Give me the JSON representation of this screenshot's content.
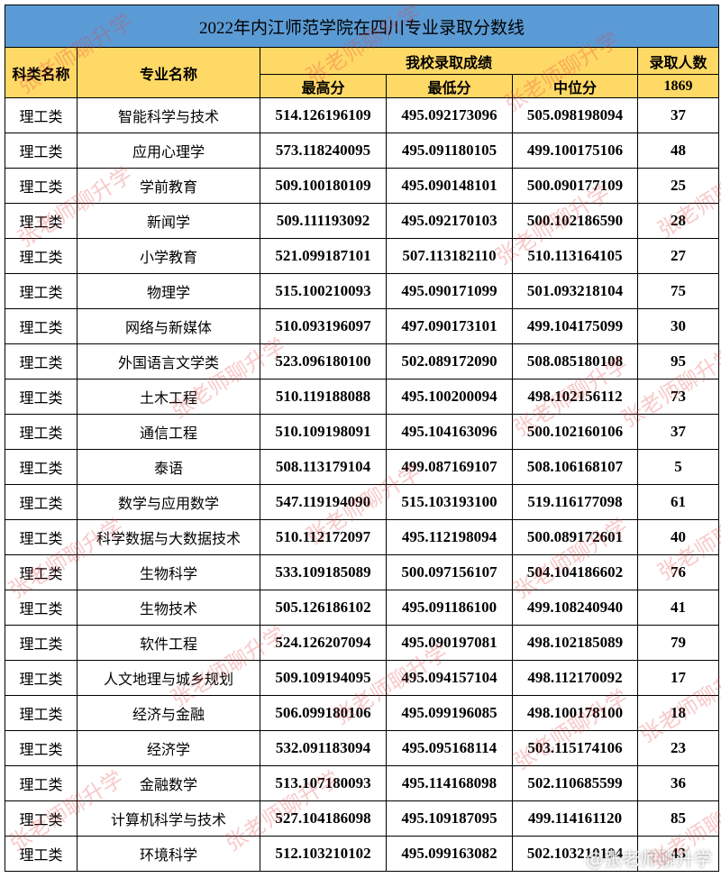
{
  "table": {
    "title": "2022年内江师范学院在四川专业录取分数线",
    "header": {
      "category": "科类名称",
      "major": "专业名称",
      "group": "我校录取成绩",
      "max": "最高分",
      "min": "最低分",
      "median": "中位分",
      "count": "录取人数",
      "total": 1869
    },
    "rows": [
      [
        "理工类",
        "智能科学与技术",
        "514.126196109",
        "495.092173096",
        "505.098198094",
        37
      ],
      [
        "理工类",
        "应用心理学",
        "573.118240095",
        "495.091180105",
        "499.100175106",
        48
      ],
      [
        "理工类",
        "学前教育",
        "509.100180109",
        "495.090148101",
        "500.090177109",
        25
      ],
      [
        "理工类",
        "新闻学",
        "509.111193092",
        "495.092170103",
        "500.102186590",
        28
      ],
      [
        "理工类",
        "小学教育",
        "521.099187101",
        "507.113182110",
        "510.113164105",
        27
      ],
      [
        "理工类",
        "物理学",
        "515.100210093",
        "495.090171099",
        "501.093218104",
        75
      ],
      [
        "理工类",
        "网络与新媒体",
        "510.093196097",
        "497.090173101",
        "499.104175099",
        30
      ],
      [
        "理工类",
        "外国语言文学类",
        "523.096180100",
        "502.089172090",
        "508.085180108",
        95
      ],
      [
        "理工类",
        "土木工程",
        "510.119188088",
        "495.100200094",
        "498.102156112",
        73
      ],
      [
        "理工类",
        "通信工程",
        "510.109198091",
        "495.104163096",
        "500.102160106",
        37
      ],
      [
        "理工类",
        "泰语",
        "508.113179104",
        "499.087169107",
        "508.106168107",
        5
      ],
      [
        "理工类",
        "数学与应用数学",
        "547.119194090",
        "515.103193100",
        "519.116177098",
        61
      ],
      [
        "理工类",
        "科学数据与大数据技术",
        "510.112172097",
        "495.112198094",
        "500.089172601",
        40
      ],
      [
        "理工类",
        "生物科学",
        "533.109185089",
        "500.097156107",
        "504.104186602",
        76
      ],
      [
        "理工类",
        "生物技术",
        "505.126186102",
        "495.091186100",
        "499.108240940",
        41
      ],
      [
        "理工类",
        "软件工程",
        "524.126207094",
        "495.090197081",
        "498.102185089",
        79
      ],
      [
        "理工类",
        "人文地理与城乡规划",
        "509.109194095",
        "495.094157104",
        "498.112170092",
        17
      ],
      [
        "理工类",
        "经济与金融",
        "506.099180106",
        "495.099196085",
        "498.100178100",
        18
      ],
      [
        "理工类",
        "经济学",
        "532.091183094",
        "495.095168114",
        "503.115174106",
        23
      ],
      [
        "理工类",
        "金融数学",
        "513.107180093",
        "495.114168098",
        "502.110685599",
        36
      ],
      [
        "理工类",
        "计算机科学与技术",
        "527.104186098",
        "495.109187095",
        "499.114161120",
        85
      ],
      [
        "理工类",
        "环境科学",
        "512.103210102",
        "495.099163082",
        "502.103210104",
        43
      ]
    ]
  },
  "watermark": "张老师聊升学",
  "logo": "@张老师聊升学"
}
